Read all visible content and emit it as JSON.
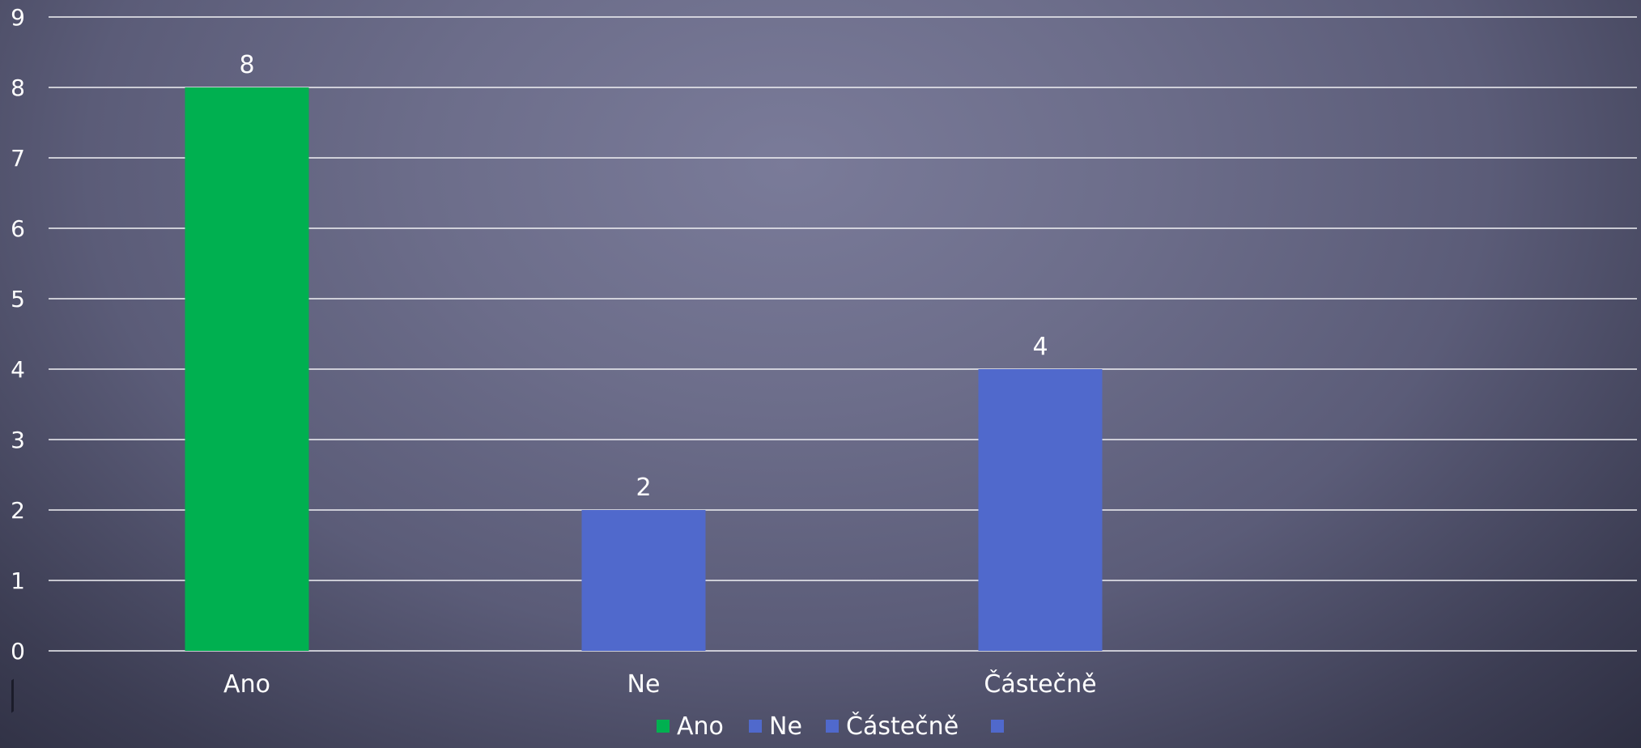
{
  "chart_data": {
    "type": "bar",
    "title": "",
    "xlabel": "",
    "ylabel": "",
    "categories": [
      "Ano",
      "Ne",
      "Částečně"
    ],
    "values": [
      8,
      2,
      4
    ],
    "bar_colors": [
      "#00b050",
      "#5069cc",
      "#5069cc"
    ],
    "data_labels": [
      "8",
      "2",
      "4"
    ],
    "ylim": [
      0,
      9
    ],
    "yticks": [
      "0",
      "1",
      "2",
      "3",
      "4",
      "5",
      "6",
      "7",
      "8",
      "9"
    ],
    "grid": true,
    "legend": {
      "position": "bottom",
      "entries": [
        {
          "label": "Ano",
          "color": "#00b050"
        },
        {
          "label": "Ne",
          "color": "#5069cc"
        },
        {
          "label": "Částečně",
          "color": "#5069cc"
        },
        {
          "label": "",
          "color": "#5069cc"
        }
      ]
    }
  }
}
